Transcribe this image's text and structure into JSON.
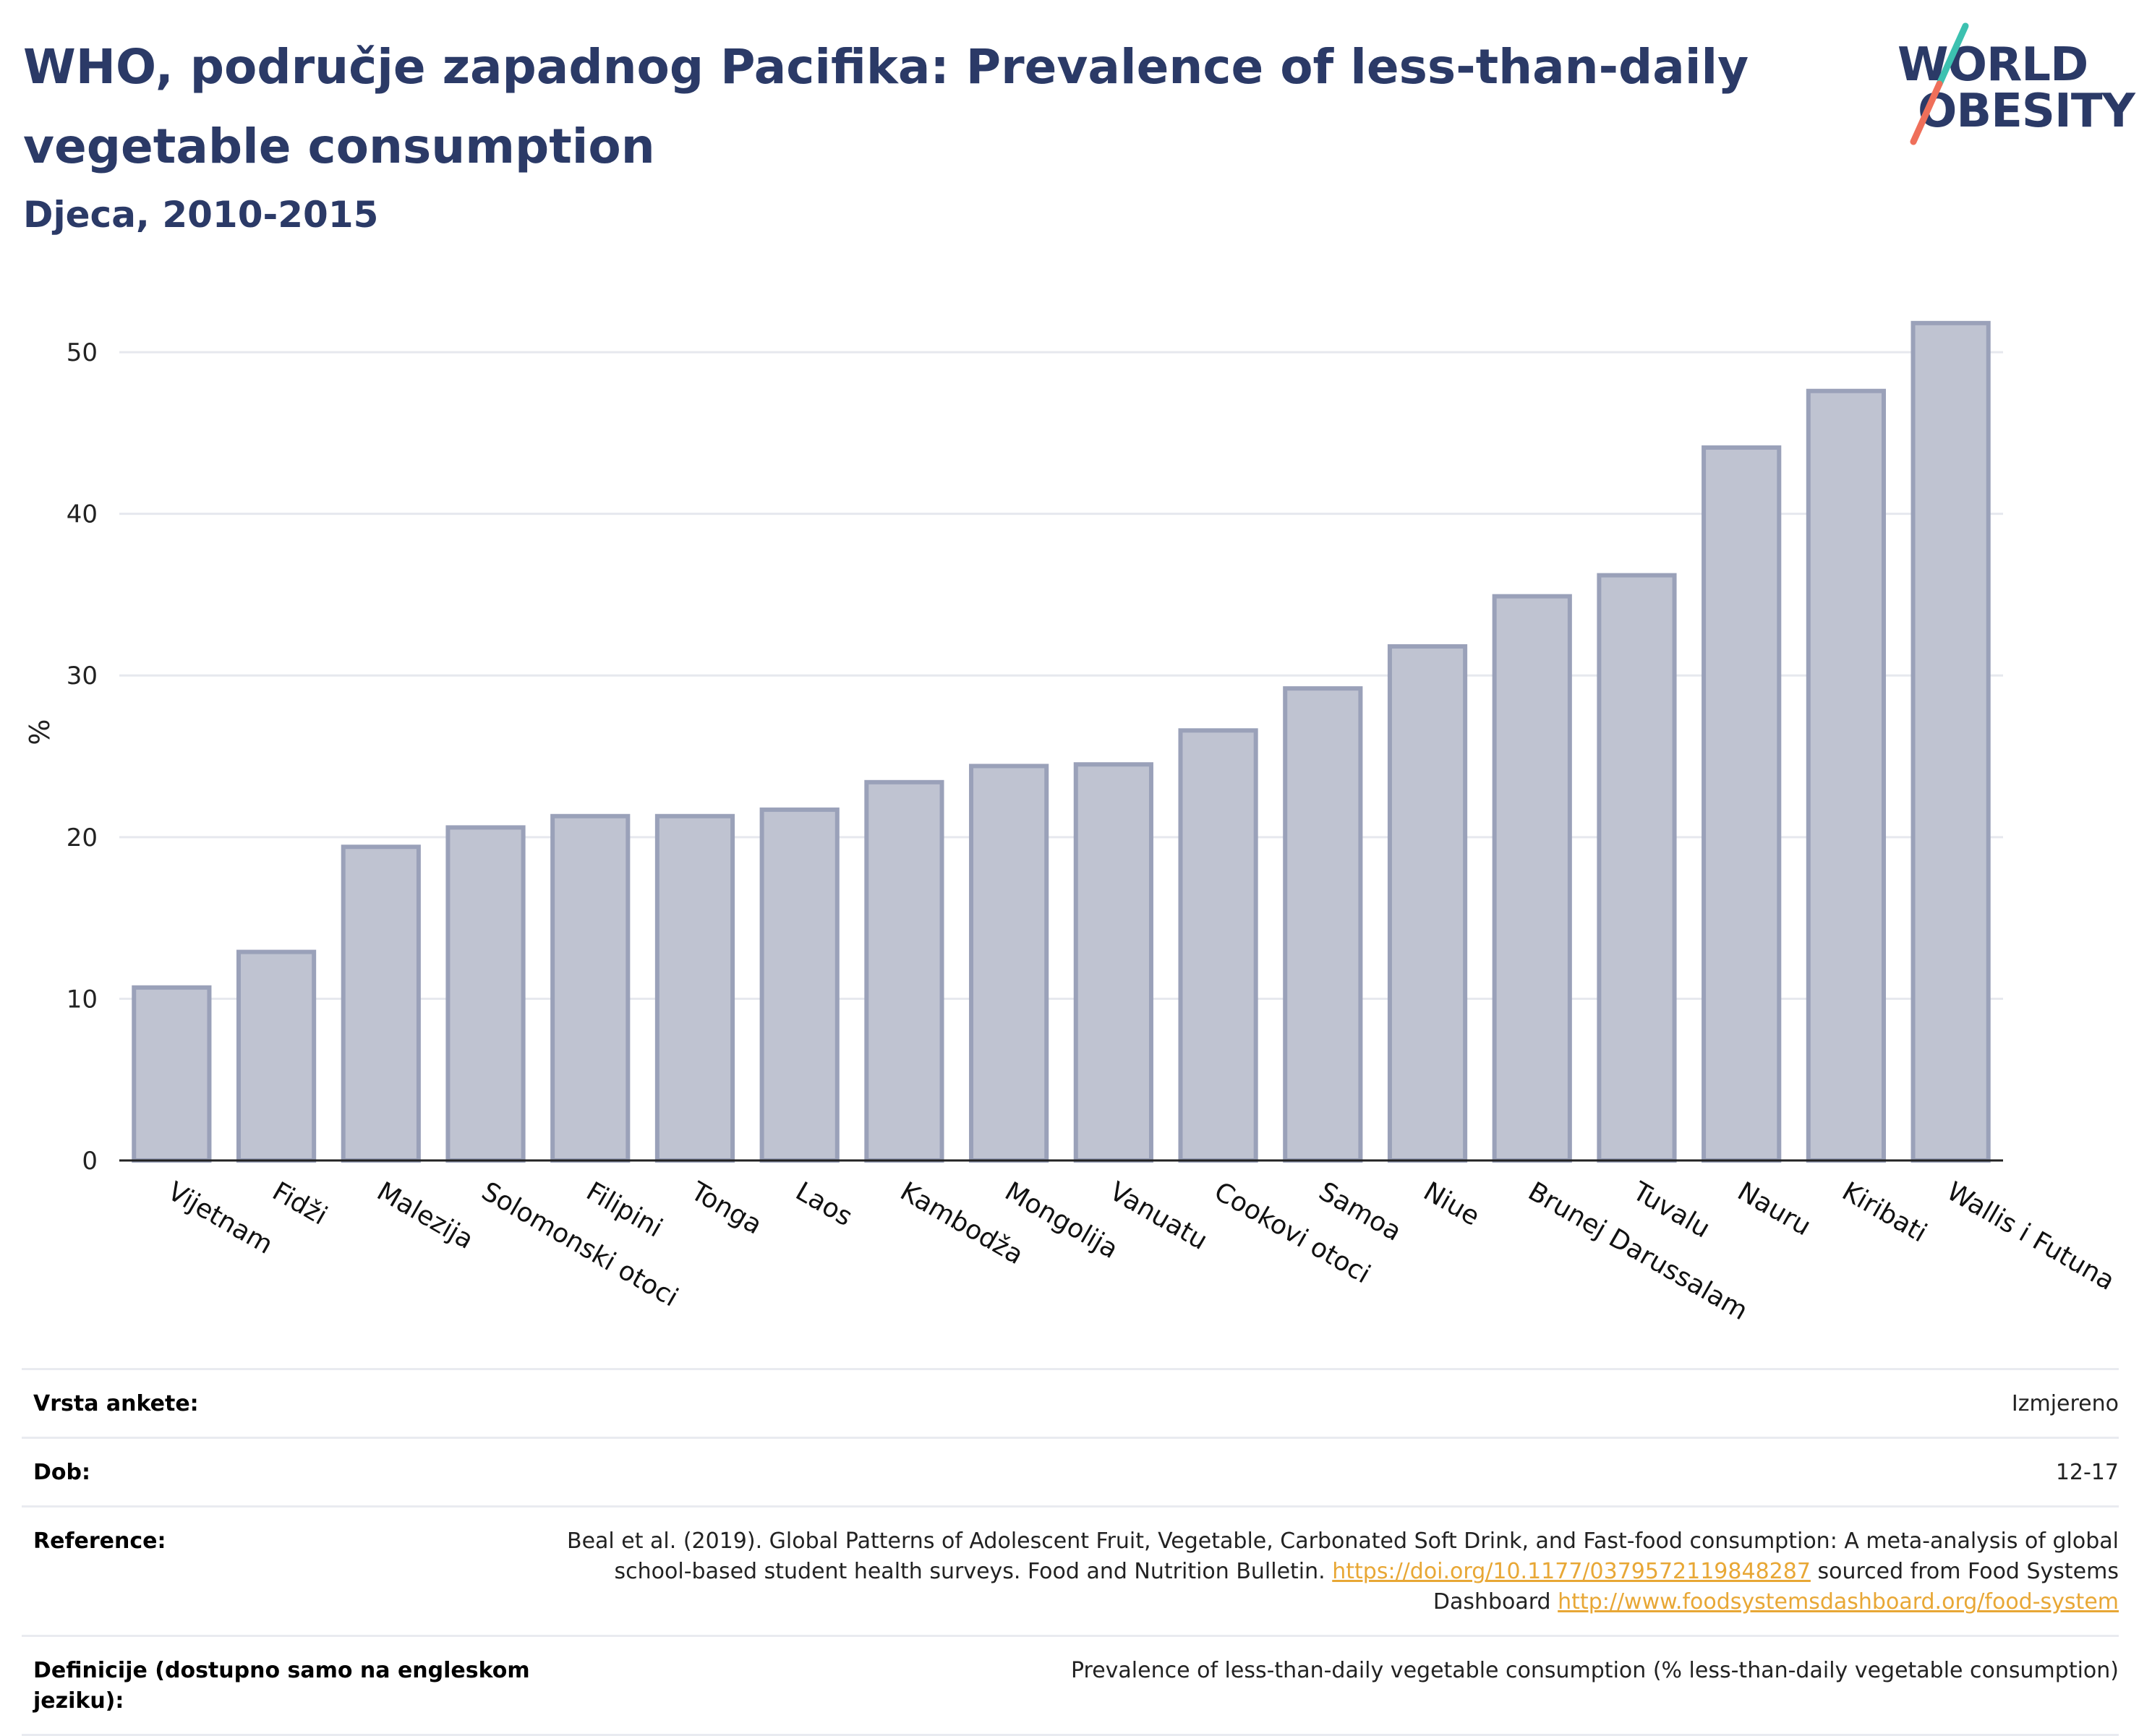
{
  "header": {
    "title": "WHO, područje zapadnog Pacifika: Prevalence of less-than-daily vegetable consumption",
    "subtitle": "Djeca, 2010-2015"
  },
  "logo": {
    "line1": "WORLD",
    "line2": "OBESITY",
    "slash_colors": [
      "#3cc1b0",
      "#ef6f5a"
    ]
  },
  "colors": {
    "bar_fill": "#bfc3d1",
    "bar_stroke": "#9aa1b9",
    "axis": "#222222",
    "grid": "#e6e8ee",
    "title": "#2b3a67",
    "link": "#e8a735"
  },
  "chart_data": {
    "type": "bar",
    "title": "WHO, područje zapadnog Pacifika: Prevalence of less-than-daily vegetable consumption",
    "subtitle": "Djeca, 2010-2015",
    "xlabel": "",
    "ylabel": "%",
    "ylim": [
      0,
      53
    ],
    "yticks": [
      0,
      10,
      20,
      30,
      40,
      50
    ],
    "grid": true,
    "categories": [
      "Vijetnam",
      "Fidži",
      "Malezija",
      "Solomonski otoci",
      "Filipini",
      "Tonga",
      "Laos",
      "Kambodža",
      "Mongolija",
      "Vanuatu",
      "Cookovi otoci",
      "Samoa",
      "Niue",
      "Brunej Darussalam",
      "Tuvalu",
      "Nauru",
      "Kiribati",
      "Wallis i Futuna"
    ],
    "values": [
      10.7,
      12.9,
      19.4,
      20.6,
      21.3,
      21.3,
      21.7,
      23.4,
      24.4,
      24.5,
      26.6,
      29.2,
      31.8,
      34.9,
      36.2,
      44.1,
      47.6,
      51.8
    ]
  },
  "meta": {
    "survey_type": {
      "label": "Vrsta ankete:",
      "value": "Izmjereno"
    },
    "age": {
      "label": "Dob:",
      "value": "12-17"
    },
    "reference": {
      "label": "Reference:",
      "text1": "Beal et al. (2019). Global Patterns of Adolescent Fruit, Vegetable, Carbonated Soft Drink, and Fast-food consumption: A meta-analysis of global school-based student health surveys. Food and Nutrition Bulletin.",
      "link1": "https://doi.org/10.1177/0379572119848287",
      "text2": "sourced from Food Systems Dashboard",
      "link2": "http://www.foodsystemsdashboard.org/food-system"
    },
    "definition": {
      "label": "Definicije (dostupno samo na engleskom jeziku):",
      "value": "Prevalence of less-than-daily vegetable consumption (% less-than-daily vegetable consumption)"
    }
  }
}
